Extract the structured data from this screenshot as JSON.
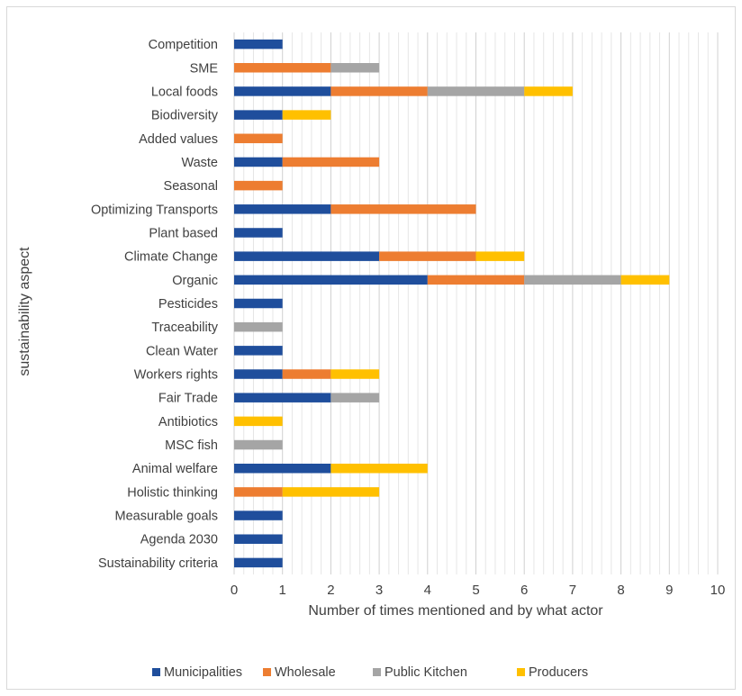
{
  "chart_data": {
    "type": "bar",
    "orientation": "horizontal",
    "stacked": true,
    "title": "",
    "xlabel": "Number of times mentioned and by what actor",
    "ylabel": "sustainability aspect",
    "xlim": [
      0,
      10
    ],
    "x_ticks": [
      0,
      1,
      2,
      3,
      4,
      5,
      6,
      7,
      8,
      9,
      10
    ],
    "grid": "vertical major and minor gridlines",
    "legend_position": "bottom",
    "categories": [
      "Competition",
      "SME",
      "Local foods",
      "Biodiversity",
      "Added values",
      "Waste",
      "Seasonal",
      "Optimizing Transports",
      "Plant based",
      "Climate Change",
      "Organic",
      "Pesticides",
      "Traceability",
      "Clean Water",
      "Workers rights",
      "Fair Trade",
      "Antibiotics",
      "MSC fish",
      "Animal welfare",
      "Holistic thinking",
      "Measurable goals",
      "Agenda 2030",
      "Sustainability criteria"
    ],
    "series": [
      {
        "name": "Municipalities",
        "color": "#1f4e9c",
        "values": [
          1,
          0,
          2,
          1,
          0,
          1,
          0,
          2,
          1,
          3,
          4,
          1,
          0,
          1,
          1,
          2,
          0,
          0,
          2,
          0,
          1,
          1,
          1
        ]
      },
      {
        "name": "Wholesale",
        "color": "#ed7d31",
        "values": [
          0,
          2,
          2,
          0,
          1,
          2,
          1,
          3,
          0,
          2,
          2,
          0,
          0,
          0,
          1,
          0,
          0,
          0,
          0,
          1,
          0,
          0,
          0
        ]
      },
      {
        "name": "Public Kitchen",
        "color": "#a5a5a5",
        "values": [
          0,
          1,
          2,
          0,
          0,
          0,
          0,
          0,
          0,
          0,
          2,
          0,
          1,
          0,
          0,
          1,
          0,
          1,
          0,
          0,
          0,
          0,
          0
        ]
      },
      {
        "name": "Producers",
        "color": "#ffc000",
        "values": [
          0,
          0,
          1,
          1,
          0,
          0,
          0,
          0,
          0,
          1,
          1,
          0,
          0,
          0,
          1,
          0,
          1,
          0,
          2,
          2,
          0,
          0,
          0
        ]
      }
    ]
  }
}
